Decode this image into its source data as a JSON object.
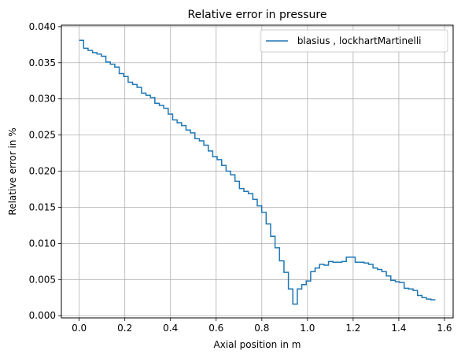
{
  "chart_data": {
    "type": "line",
    "drawstyle": "steps-post",
    "title": "Relative error in pressure",
    "xlabel": "Axial position in m",
    "ylabel": "Relative error in %",
    "xlim": [
      -0.078,
      1.638
    ],
    "ylim": [
      -0.0003,
      0.0402
    ],
    "xticks": [
      0.0,
      0.2,
      0.4,
      0.6,
      0.8,
      1.0,
      1.2,
      1.4,
      1.6
    ],
    "xtick_labels": [
      "0.0",
      "0.2",
      "0.4",
      "0.6",
      "0.8",
      "1.0",
      "1.2",
      "1.4",
      "1.6"
    ],
    "yticks": [
      0.0,
      0.005,
      0.01,
      0.015,
      0.02,
      0.025,
      0.03,
      0.035,
      0.04
    ],
    "ytick_labels": [
      "0.000",
      "0.005",
      "0.010",
      "0.015",
      "0.020",
      "0.025",
      "0.030",
      "0.035",
      "0.040"
    ],
    "grid": true,
    "legend_position": "top-right",
    "series": [
      {
        "name": " blasius , lockhartMartinelli",
        "color": "#1f77b4",
        "x": [
          0.0,
          0.0195,
          0.039,
          0.0585,
          0.078,
          0.0975,
          0.117,
          0.1365,
          0.156,
          0.1755,
          0.195,
          0.2145,
          0.234,
          0.2535,
          0.273,
          0.2925,
          0.312,
          0.3315,
          0.351,
          0.3705,
          0.39,
          0.4095,
          0.429,
          0.4485,
          0.468,
          0.4875,
          0.507,
          0.5265,
          0.546,
          0.5655,
          0.585,
          0.6045,
          0.624,
          0.6435,
          0.663,
          0.6825,
          0.702,
          0.7215,
          0.741,
          0.7605,
          0.78,
          0.7995,
          0.819,
          0.8385,
          0.858,
          0.8775,
          0.897,
          0.9165,
          0.936,
          0.9555,
          0.975,
          0.9945,
          1.014,
          1.0335,
          1.053,
          1.0725,
          1.092,
          1.1115,
          1.131,
          1.1505,
          1.17,
          1.1895,
          1.209,
          1.2285,
          1.248,
          1.2675,
          1.287,
          1.3065,
          1.326,
          1.3455,
          1.365,
          1.3845,
          1.404,
          1.4235,
          1.443,
          1.4625,
          1.482,
          1.5015,
          1.521,
          1.5405,
          1.56
        ],
        "y": [
          0.0381,
          0.037,
          0.0367,
          0.0364,
          0.0362,
          0.0359,
          0.0351,
          0.0348,
          0.0344,
          0.0335,
          0.0331,
          0.0323,
          0.032,
          0.0316,
          0.0308,
          0.0305,
          0.0302,
          0.0294,
          0.0291,
          0.0287,
          0.0279,
          0.0271,
          0.0267,
          0.0263,
          0.0257,
          0.0253,
          0.0245,
          0.0242,
          0.0236,
          0.0228,
          0.022,
          0.0216,
          0.0208,
          0.02,
          0.0195,
          0.0186,
          0.0176,
          0.0172,
          0.0169,
          0.0161,
          0.0152,
          0.0143,
          0.0127,
          0.011,
          0.0094,
          0.0076,
          0.006,
          0.0037,
          0.0016,
          0.0037,
          0.0043,
          0.0048,
          0.0061,
          0.0066,
          0.0071,
          0.007,
          0.0075,
          0.0074,
          0.0074,
          0.0075,
          0.0081,
          0.0081,
          0.0074,
          0.0074,
          0.0073,
          0.0071,
          0.0066,
          0.0064,
          0.0061,
          0.0055,
          0.0049,
          0.0047,
          0.0046,
          0.0038,
          0.0037,
          0.0035,
          0.0028,
          0.0025,
          0.0023,
          0.0022,
          0.0022
        ]
      }
    ]
  }
}
